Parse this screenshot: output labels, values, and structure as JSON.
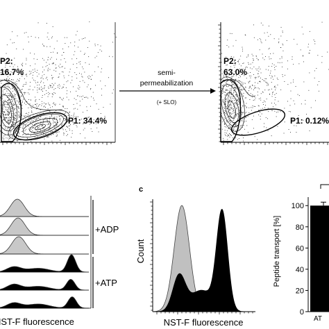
{
  "panel_a": {
    "left_plot": {
      "gate_p2_label": "P2:",
      "gate_p2_value": "16.7%",
      "gate_p1_text": "P1: 34.4%"
    },
    "arrow": {
      "line1": "semi-",
      "line2": "permeabilization",
      "line3": "(+ SLO)"
    },
    "right_plot": {
      "gate_p2_label": "P2:",
      "gate_p2_value": "63.0%",
      "gate_p1_text": "P1: 0.12%"
    }
  },
  "panel_b": {
    "xlabel": "NST-F fluorescence",
    "conditions": [
      "+ADP",
      "+ATP"
    ],
    "adp_fill": "#c8c8c8",
    "atp_fill": "#000000"
  },
  "panel_c": {
    "letter": "c",
    "ylabel": "Count",
    "xlabel": "NST-F fluorescence",
    "overlay_fill": "#c0c0c0",
    "atp_fill": "#000000"
  },
  "panel_d": {
    "ylabel": "Peptide transport [%]",
    "xtick_partial": "AT",
    "bar_color": "#000000"
  },
  "chart_data": {
    "type": "bar",
    "categories": [
      "AT"
    ],
    "values": [
      100
    ],
    "ylabel": "Peptide transport [%]",
    "yticks": [
      0,
      20,
      40,
      60,
      80,
      100
    ],
    "ylim": [
      0,
      108
    ]
  }
}
